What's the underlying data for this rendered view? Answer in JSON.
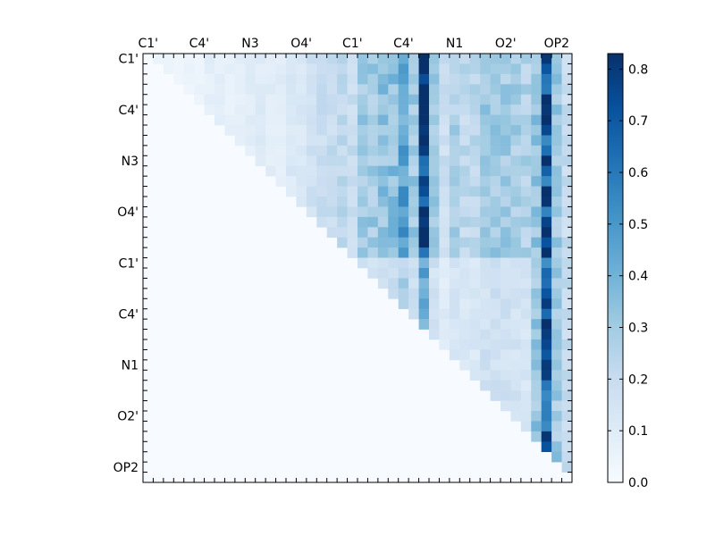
{
  "chart_data": {
    "type": "heatmap",
    "title": "",
    "xlabel": "",
    "ylabel": "",
    "n": 42,
    "x_ticks": [
      {
        "index": 0.5,
        "label": "C1'"
      },
      {
        "index": 5.5,
        "label": "C4'"
      },
      {
        "index": 10.5,
        "label": "N3"
      },
      {
        "index": 15.5,
        "label": "O4'"
      },
      {
        "index": 20.5,
        "label": "C1'"
      },
      {
        "index": 25.5,
        "label": "C4'"
      },
      {
        "index": 30.5,
        "label": "N1"
      },
      {
        "index": 35.5,
        "label": "O2'"
      },
      {
        "index": 40.5,
        "label": "OP2"
      }
    ],
    "y_ticks": [
      {
        "index": 0.5,
        "label": "C1'"
      },
      {
        "index": 5.5,
        "label": "C4'"
      },
      {
        "index": 10.5,
        "label": "N3"
      },
      {
        "index": 15.5,
        "label": "O4'"
      },
      {
        "index": 20.5,
        "label": "C1'"
      },
      {
        "index": 25.5,
        "label": "C4'"
      },
      {
        "index": 30.5,
        "label": "N1"
      },
      {
        "index": 35.5,
        "label": "O2'"
      },
      {
        "index": 40.5,
        "label": "OP2"
      }
    ],
    "colorbar": {
      "min": 0.0,
      "max": 0.83,
      "ticks": [
        0.0,
        0.1,
        0.2,
        0.3,
        0.4,
        0.5,
        0.6,
        0.7,
        0.8
      ],
      "tick_labels": [
        "0.0",
        "0.1",
        "0.2",
        "0.3",
        "0.4",
        "0.5",
        "0.6",
        "0.7",
        "0.8"
      ],
      "colormap": "Blues"
    },
    "col_profile": [
      0.02,
      0.06,
      0.06,
      0.04,
      0.05,
      0.05,
      0.08,
      0.08,
      0.07,
      0.08,
      0.09,
      0.1,
      0.09,
      0.09,
      0.12,
      0.13,
      0.16,
      0.18,
      0.2,
      0.22,
      0.2,
      0.3,
      0.3,
      0.33,
      0.34,
      0.47,
      0.3,
      0.8,
      0.3,
      0.18,
      0.27,
      0.22,
      0.23,
      0.3,
      0.3,
      0.3,
      0.28,
      0.26,
      0.32,
      0.7,
      0.3,
      0.2
    ],
    "notes": "upper-triangular matrix; blank cells are 0"
  }
}
